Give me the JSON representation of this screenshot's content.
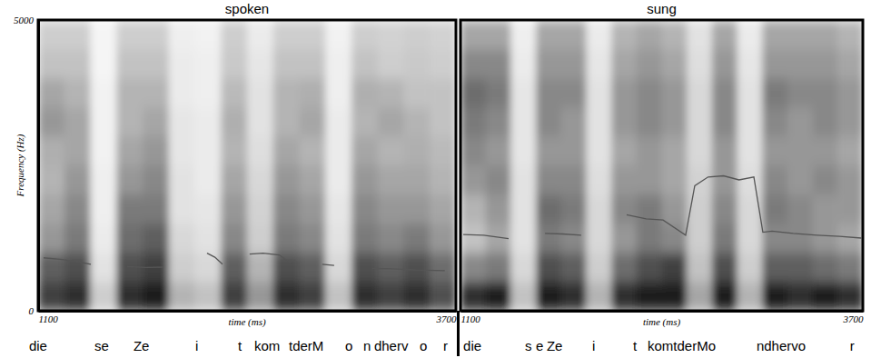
{
  "chart_data": [
    {
      "type": "heatmap",
      "title": "spoken",
      "x_label": "time (ms)",
      "y_label": "Frequency (Hz)",
      "xlim": [
        1100,
        3700
      ],
      "xticks": [
        1100,
        3700
      ],
      "ylim": [
        0,
        5000
      ],
      "yticks": [
        0,
        5000
      ],
      "cells": [
        [
          0.8,
          0.85,
          0.3,
          0.85,
          0.9,
          0.4,
          0.35,
          0.8,
          0.5,
          0.85,
          0.8,
          0.35,
          0.85,
          0.8,
          0.85,
          0.75
        ],
        [
          0.7,
          0.75,
          0.2,
          0.75,
          0.8,
          0.3,
          0.25,
          0.7,
          0.4,
          0.75,
          0.7,
          0.25,
          0.75,
          0.7,
          0.75,
          0.65
        ],
        [
          0.5,
          0.6,
          0.15,
          0.65,
          0.7,
          0.25,
          0.2,
          0.55,
          0.3,
          0.6,
          0.55,
          0.2,
          0.6,
          0.55,
          0.6,
          0.5
        ],
        [
          0.45,
          0.55,
          0.12,
          0.6,
          0.6,
          0.2,
          0.18,
          0.5,
          0.28,
          0.55,
          0.5,
          0.18,
          0.55,
          0.5,
          0.5,
          0.45
        ],
        [
          0.4,
          0.5,
          0.12,
          0.5,
          0.55,
          0.2,
          0.15,
          0.45,
          0.25,
          0.5,
          0.45,
          0.15,
          0.5,
          0.45,
          0.45,
          0.4
        ],
        [
          0.42,
          0.45,
          0.1,
          0.45,
          0.5,
          0.18,
          0.15,
          0.4,
          0.22,
          0.45,
          0.4,
          0.15,
          0.45,
          0.4,
          0.42,
          0.38
        ],
        [
          0.5,
          0.45,
          0.1,
          0.4,
          0.45,
          0.18,
          0.15,
          0.42,
          0.2,
          0.4,
          0.45,
          0.15,
          0.4,
          0.45,
          0.4,
          0.35
        ],
        [
          0.45,
          0.4,
          0.1,
          0.4,
          0.4,
          0.15,
          0.12,
          0.38,
          0.2,
          0.4,
          0.42,
          0.12,
          0.42,
          0.4,
          0.35,
          0.35
        ],
        [
          0.35,
          0.35,
          0.08,
          0.35,
          0.35,
          0.15,
          0.12,
          0.32,
          0.18,
          0.35,
          0.35,
          0.12,
          0.35,
          0.3,
          0.32,
          0.3
        ],
        [
          0.3,
          0.3,
          0.08,
          0.3,
          0.3,
          0.12,
          0.1,
          0.3,
          0.15,
          0.3,
          0.3,
          0.1,
          0.3,
          0.28,
          0.3,
          0.28
        ]
      ],
      "series": [
        {
          "type": "line",
          "color": "#555555",
          "x": [
            1134,
            1250,
            1350,
            1428,
            1500,
            1654,
            1770,
            1880,
            2000,
            2151,
            2200,
            2247,
            2330,
            2416,
            2500,
            2600,
            2671,
            2770,
            2868,
            2942,
            3050,
            3179,
            3300,
            3450,
            3631
          ],
          "values": [
            910,
            880,
            840,
            800,
            null,
            760,
            745,
            750,
            null,
            990,
            920,
            800,
            null,
            975,
            990,
            960,
            820,
            null,
            800,
            780,
            null,
            730,
            720,
            700,
            690
          ]
        }
      ],
      "annotations": [
        {
          "text": "die",
          "x": 1043
        },
        {
          "text": "se",
          "x": 1450
        },
        {
          "text": "Ze",
          "x": 1693
        },
        {
          "text": "i",
          "x": 2078
        },
        {
          "text": "t",
          "x": 2343
        },
        {
          "text": "kom",
          "x": 2445
        },
        {
          "text": "tderM",
          "x": 2660
        },
        {
          "text": "o",
          "x": 3010
        },
        {
          "text": "n",
          "x": 3123
        },
        {
          "text": "dherv",
          "x": 3191
        },
        {
          "text": "o",
          "x": 3474
        },
        {
          "text": "r",
          "x": 3621
        }
      ]
    },
    {
      "type": "heatmap",
      "title": "sung",
      "x_label": "time (ms)",
      "xlim": [
        1100,
        3700
      ],
      "xticks": [
        1100,
        3700
      ],
      "ylim": [
        0,
        5000
      ],
      "tick_labels": "x",
      "cells": [
        [
          0.85,
          0.9,
          0.35,
          0.9,
          0.85,
          0.4,
          0.85,
          0.9,
          0.9,
          0.45,
          0.9,
          0.4,
          0.9,
          0.85,
          0.9,
          0.85
        ],
        [
          0.55,
          0.6,
          0.25,
          0.75,
          0.7,
          0.3,
          0.65,
          0.75,
          0.8,
          0.35,
          0.75,
          0.3,
          0.7,
          0.7,
          0.65,
          0.6
        ],
        [
          0.35,
          0.45,
          0.2,
          0.6,
          0.55,
          0.25,
          0.5,
          0.6,
          0.55,
          0.3,
          0.6,
          0.25,
          0.55,
          0.55,
          0.5,
          0.45
        ],
        [
          0.4,
          0.5,
          0.2,
          0.65,
          0.6,
          0.25,
          0.55,
          0.6,
          0.5,
          0.3,
          0.55,
          0.25,
          0.6,
          0.55,
          0.5,
          0.5
        ],
        [
          0.5,
          0.55,
          0.2,
          0.55,
          0.55,
          0.22,
          0.5,
          0.5,
          0.45,
          0.28,
          0.5,
          0.22,
          0.55,
          0.5,
          0.55,
          0.5
        ],
        [
          0.55,
          0.5,
          0.18,
          0.5,
          0.5,
          0.2,
          0.45,
          0.5,
          0.45,
          0.25,
          0.5,
          0.2,
          0.5,
          0.5,
          0.5,
          0.45
        ],
        [
          0.6,
          0.55,
          0.18,
          0.55,
          0.5,
          0.2,
          0.5,
          0.55,
          0.5,
          0.25,
          0.55,
          0.2,
          0.55,
          0.5,
          0.55,
          0.5
        ],
        [
          0.65,
          0.6,
          0.18,
          0.55,
          0.55,
          0.2,
          0.5,
          0.55,
          0.5,
          0.25,
          0.55,
          0.2,
          0.6,
          0.55,
          0.55,
          0.5
        ],
        [
          0.55,
          0.55,
          0.15,
          0.5,
          0.5,
          0.18,
          0.45,
          0.5,
          0.45,
          0.22,
          0.5,
          0.18,
          0.5,
          0.5,
          0.5,
          0.45
        ],
        [
          0.45,
          0.45,
          0.12,
          0.45,
          0.45,
          0.15,
          0.4,
          0.45,
          0.4,
          0.2,
          0.45,
          0.15,
          0.45,
          0.45,
          0.45,
          0.4
        ]
      ],
      "series": [
        {
          "type": "line",
          "color": "#555555",
          "x": [
            1118,
            1250,
            1411,
            1460,
            1646,
            1760,
            1880,
            2020,
            2174,
            2300,
            2409,
            2555,
            2614,
            2700,
            2800,
            2900,
            2996,
            3054,
            3113,
            3250,
            3406,
            3550,
            3690
          ],
          "values": [
            1310,
            1300,
            1240,
            null,
            1330,
            1320,
            1300,
            null,
            1650,
            1580,
            1560,
            1300,
            2150,
            2300,
            2320,
            2250,
            2300,
            1350,
            1370,
            1330,
            1300,
            1280,
            1250
          ]
        }
      ],
      "annotations": [
        {
          "text": "die",
          "x": 1118
        },
        {
          "text": "s",
          "x": 1517
        },
        {
          "text": "e",
          "x": 1587
        },
        {
          "text": "Ze",
          "x": 1657
        },
        {
          "text": "i",
          "x": 1951
        },
        {
          "text": "t",
          "x": 2215
        },
        {
          "text": "komtderMo",
          "x": 2309
        },
        {
          "text": "ndhervo",
          "x": 3013
        },
        {
          "text": "r",
          "x": 3617
        }
      ]
    }
  ]
}
